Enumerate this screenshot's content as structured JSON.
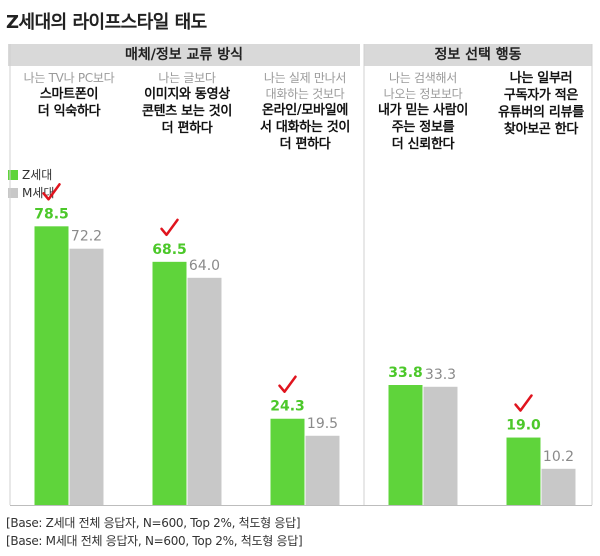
{
  "title": "Z세대의 라이프스타일 태도",
  "groups": [
    {
      "label": "매체/정보 교류 방식"
    },
    {
      "label": "정보 선택 행동"
    }
  ],
  "columns": [
    {
      "sub": "나는 TV나 PC보다",
      "main": "스마트폰이\n더 익숙하다"
    },
    {
      "sub": "나는 글보다",
      "main": "이미지와 동영상\n콘텐츠 보는 것이\n더 편하다"
    },
    {
      "sub": "나는 실제 만나서\n대화하는 것보다",
      "main": "온라인/모바일에\n서 대화하는 것이\n더 편하다"
    },
    {
      "sub": "나는 검색해서\n나오는 정보보다",
      "main": "내가 믿는 사람이\n주는 정보를\n더 신뢰한다"
    },
    {
      "sub": "",
      "main": "나는 일부러\n구독자가 적은\n유튜버의 리뷰를\n찾아보곤 한다"
    }
  ],
  "legend": [
    {
      "label": "Z세대",
      "color": "#5fd43b"
    },
    {
      "label": "M세대",
      "color": "#c8c8c8"
    }
  ],
  "footnotes": [
    "[Base: Z세대 전체 응답자, N=600, Top 2%, 척도형 응답]",
    "[Base: M세대 전체 응답자, N=600, Top 2%, 척도형 응답]"
  ],
  "colors": {
    "z": "#5fd43b",
    "m": "#c8c8c8",
    "check": "#e0141e",
    "z_label": "#4cc82a",
    "m_label": "#8a8a8a"
  },
  "chart_data": {
    "type": "bar",
    "categories": [
      "스마트폰이 더 익숙하다",
      "이미지와 동영상 콘텐츠 보는 것이 더 편하다",
      "온라인/모바일에서 대화하는 것이 더 편하다",
      "내가 믿는 사람이 주는 정보를 더 신뢰한다",
      "구독자가 적은 유튜버의 리뷰를 찾아보곤 한다"
    ],
    "series": [
      {
        "name": "Z세대",
        "values": [
          78.5,
          68.5,
          24.3,
          33.8,
          19.0
        ]
      },
      {
        "name": "M세대",
        "values": [
          72.2,
          64.0,
          19.5,
          33.3,
          10.2
        ]
      }
    ],
    "labels": {
      "Z세대": [
        "78.5",
        "68.5",
        "24.3",
        "33.8",
        "19.0"
      ],
      "M세대": [
        "72.2",
        "64.0",
        "19.5",
        "33.3",
        "10.2"
      ]
    },
    "checkmarks": [
      true,
      true,
      true,
      false,
      true
    ],
    "ylim": [
      0,
      100
    ],
    "legend_position": "top-left"
  }
}
